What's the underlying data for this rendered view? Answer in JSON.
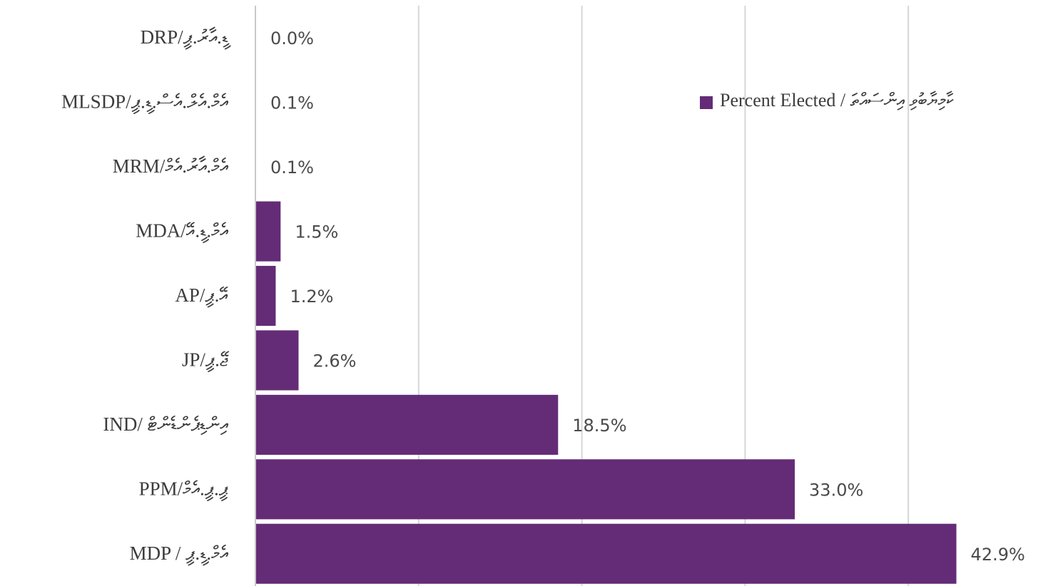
{
  "chart_data": {
    "type": "bar",
    "orientation": "horizontal",
    "categories": [
      "DRP/ޑީ.އާރު.ޕީ",
      "MLSDP/އެމް.އެލް.އެސް.ޑީ.ޕީ",
      "MRM/އެމް.އާރު.އެމް",
      "MDA/އެމް.ޑީ.އޭ",
      "AP/އޭ.ޕީ",
      "JP/ޖޭ.ޕީ",
      "IND/ އިންޑިޕެންޑެންޓް",
      "PPM/ޕީ.ޕީ.އެމް",
      "MDP / އެމް.ޑީ.ޕީ"
    ],
    "series": [
      {
        "name": "Percent Elected / ކާމިޔާބުވި އިންސައްތަ",
        "values": [
          0.0,
          0.1,
          0.1,
          1.5,
          1.2,
          2.6,
          18.5,
          33.0,
          42.9
        ],
        "labels": [
          "0.0%",
          "0.1%",
          "0.1%",
          "1.5%",
          "1.2%",
          "2.6%",
          "18.5%",
          "33.0%",
          "42.9%"
        ],
        "color": "#642c76"
      }
    ],
    "xlim": [
      0,
      50
    ],
    "grid": true,
    "legend_position": "top-right"
  }
}
